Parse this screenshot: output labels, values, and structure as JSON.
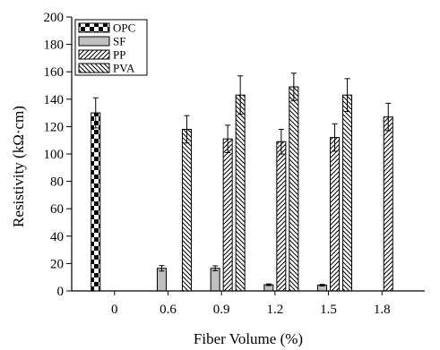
{
  "chart_data": {
    "type": "bar",
    "title": "",
    "xlabel": "Fiber Volume (%)",
    "ylabel": "Resistivity (kΩ·cm)",
    "categories": [
      "0",
      "0.6",
      "0.9",
      "1.2",
      "1.5",
      "1.8"
    ],
    "ylim": [
      0,
      200
    ],
    "yticks": [
      0,
      20,
      40,
      60,
      80,
      100,
      120,
      140,
      160,
      180,
      200
    ],
    "legend_position": "top-left",
    "series": [
      {
        "name": "OPC",
        "pattern": "checker",
        "values": [
          130,
          null,
          null,
          null,
          null,
          null
        ],
        "errors": [
          11,
          null,
          null,
          null,
          null,
          null
        ]
      },
      {
        "name": "SF",
        "pattern": "gray",
        "values": [
          null,
          16.5,
          16.5,
          4.5,
          4.2,
          null
        ],
        "errors": [
          null,
          2,
          1.8,
          0.6,
          0.6,
          null
        ]
      },
      {
        "name": "PP",
        "pattern": "hatch-forward",
        "values": [
          null,
          null,
          111,
          109,
          112,
          127
        ],
        "errors": [
          null,
          null,
          10,
          9,
          10,
          10
        ]
      },
      {
        "name": "PVA",
        "pattern": "hatch-back",
        "values": [
          null,
          118,
          143,
          149,
          143,
          null
        ],
        "errors": [
          null,
          10,
          14,
          10,
          12,
          null
        ]
      }
    ]
  }
}
